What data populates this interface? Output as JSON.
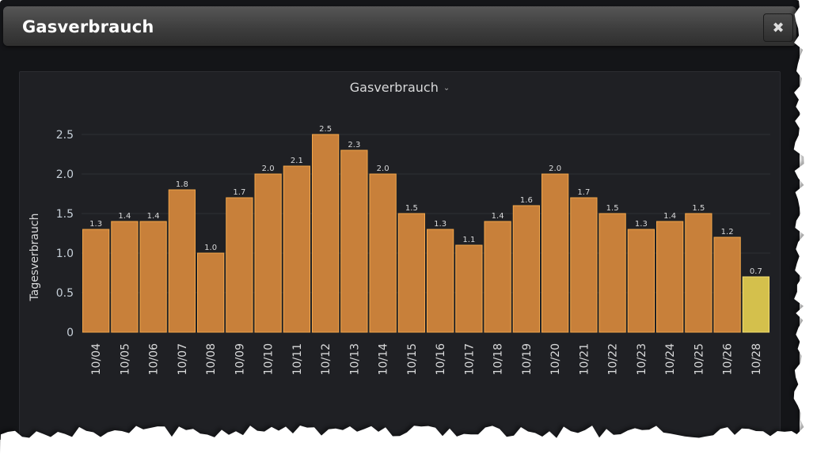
{
  "window": {
    "title": "Gasverbrauch",
    "close_icon": "close-icon"
  },
  "panel": {
    "title": "Gasverbrauch",
    "menu_icon": "chevron-down-icon"
  },
  "colors": {
    "bar": "#c8803a",
    "bar_border": "#f2a64a",
    "bar_highlight": "#d4c04c",
    "bar_highlight_border": "#f5e070",
    "grid": "#2e2f34"
  },
  "chart_data": {
    "type": "bar",
    "title": "Gasverbrauch",
    "xlabel": "",
    "ylabel": "Tagesverbrauch",
    "ylim": [
      0,
      2.5
    ],
    "yticks": [
      "0",
      "0.5",
      "1.0",
      "1.5",
      "2.0",
      "2.5"
    ],
    "grid": true,
    "categories": [
      "10/04",
      "10/05",
      "10/06",
      "10/07",
      "10/08",
      "10/09",
      "10/10",
      "10/11",
      "10/12",
      "10/13",
      "10/14",
      "10/15",
      "10/16",
      "10/17",
      "10/18",
      "10/19",
      "10/20",
      "10/21",
      "10/22",
      "10/23",
      "10/24",
      "10/25",
      "10/26",
      "10/28"
    ],
    "values": [
      1.3,
      1.4,
      1.4,
      1.8,
      1.0,
      1.7,
      2.0,
      2.1,
      2.5,
      2.3,
      2.0,
      1.5,
      1.3,
      1.1,
      1.4,
      1.6,
      2.0,
      1.7,
      1.5,
      1.3,
      1.4,
      1.5,
      1.2,
      0.7
    ],
    "value_labels": [
      "1.3",
      "1.4",
      "1.4",
      "1.8",
      "1.0",
      "1.7",
      "2.0",
      "2.1",
      "2.5",
      "2.3",
      "2.0",
      "1.5",
      "1.3",
      "1.1",
      "1.4",
      "1.6",
      "2.0",
      "1.7",
      "1.5",
      "1.3",
      "1.4",
      "1.5",
      "1.2",
      "0.7"
    ],
    "highlight_index": 23
  }
}
